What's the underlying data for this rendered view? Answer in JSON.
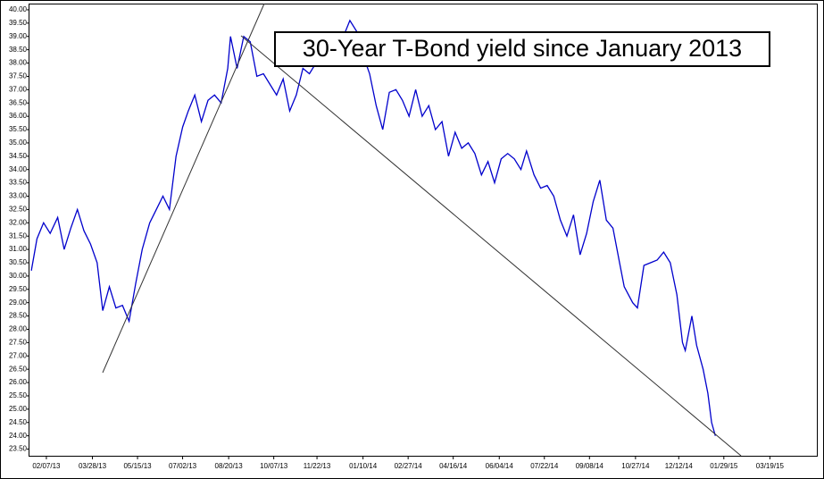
{
  "chart_data": {
    "type": "line",
    "title": "30-Year T-Bond yield since January 2013",
    "x": [
      "01/22/13",
      "01/28/13",
      "02/04/13",
      "02/11/13",
      "02/19/13",
      "02/26/13",
      "03/05/13",
      "03/12/13",
      "03/19/13",
      "03/26/13",
      "04/02/13",
      "04/08/13",
      "04/15/13",
      "04/22/13",
      "04/29/13",
      "05/06/13",
      "05/13/13",
      "05/20/13",
      "05/28/13",
      "06/04/13",
      "06/11/13",
      "06/18/13",
      "06/25/13",
      "07/02/13",
      "07/08/13",
      "07/15/13",
      "07/22/13",
      "07/29/13",
      "08/05/13",
      "08/12/13",
      "08/19/13",
      "08/22/13",
      "08/29/13",
      "09/05/13",
      "09/12/13",
      "09/19/13",
      "09/26/13",
      "10/03/13",
      "10/10/13",
      "10/17/13",
      "10/24/13",
      "10/31/13",
      "11/07/13",
      "11/14/13",
      "11/21/13",
      "11/28/13",
      "12/05/13",
      "12/12/13",
      "12/19/13",
      "12/27/13",
      "01/03/14",
      "01/10/14",
      "01/17/14",
      "01/24/14",
      "01/31/14",
      "02/07/14",
      "02/14/14",
      "02/21/14",
      "02/28/14",
      "03/07/14",
      "03/14/14",
      "03/21/14",
      "03/28/14",
      "04/04/14",
      "04/11/14",
      "04/18/14",
      "04/25/14",
      "05/02/14",
      "05/09/14",
      "05/16/14",
      "05/23/14",
      "05/30/14",
      "06/06/14",
      "06/13/14",
      "06/20/14",
      "06/27/14",
      "07/03/14",
      "07/11/14",
      "07/18/14",
      "07/25/14",
      "08/01/14",
      "08/08/14",
      "08/15/14",
      "08/22/14",
      "08/29/14",
      "09/05/14",
      "09/12/14",
      "09/19/14",
      "09/26/14",
      "10/03/14",
      "10/10/14",
      "10/15/14",
      "10/24/14",
      "10/29/14",
      "11/05/14",
      "11/12/14",
      "11/19/14",
      "11/26/14",
      "12/03/14",
      "12/10/14",
      "12/16/14",
      "12/19/14",
      "12/26/14",
      "12/31/14",
      "01/07/15",
      "01/12/15",
      "01/16/15",
      "01/20/15"
    ],
    "series": [
      {
        "color": "#0000cc",
        "values": [
          30.2,
          31.4,
          32.0,
          31.6,
          32.2,
          31.0,
          31.8,
          32.5,
          31.7,
          31.2,
          30.5,
          28.7,
          29.6,
          28.8,
          28.9,
          28.3,
          29.7,
          31.0,
          32.0,
          32.5,
          33.0,
          32.5,
          34.5,
          35.6,
          36.2,
          36.8,
          35.8,
          36.6,
          36.8,
          36.5,
          37.8,
          39.0,
          37.8,
          39.0,
          38.8,
          37.5,
          37.6,
          37.2,
          36.8,
          37.4,
          36.2,
          36.8,
          37.8,
          37.6,
          38.0,
          38.6,
          38.9,
          38.8,
          38.9,
          39.6,
          39.2,
          38.3,
          37.6,
          36.4,
          35.5,
          36.9,
          37.0,
          36.6,
          36.0,
          37.0,
          36.0,
          36.4,
          35.5,
          35.8,
          34.5,
          35.4,
          34.8,
          35.0,
          34.6,
          33.8,
          34.3,
          33.5,
          34.4,
          34.6,
          34.4,
          34.0,
          34.7,
          33.8,
          33.3,
          33.4,
          33.0,
          32.1,
          31.5,
          32.3,
          30.8,
          31.6,
          32.8,
          33.6,
          32.1,
          31.8,
          30.5,
          29.6,
          29.0,
          28.8,
          30.4,
          30.5,
          30.6,
          30.9,
          30.5,
          29.3,
          27.5,
          27.2,
          28.5,
          27.4,
          26.5,
          25.6,
          24.5,
          24.0
        ]
      }
    ],
    "xlim": [
      "01/20/13",
      "05/08/15"
    ],
    "xticks": [
      "02/07/13",
      "03/28/13",
      "05/15/13",
      "07/02/13",
      "08/20/13",
      "10/07/13",
      "11/22/13",
      "01/10/14",
      "02/27/14",
      "04/16/14",
      "06/04/14",
      "07/22/14",
      "09/08/14",
      "10/27/14",
      "12/12/14",
      "01/29/15",
      "03/19/15"
    ],
    "ylim": [
      23.25,
      40.2
    ],
    "yticks": [
      {
        "value": 23.5,
        "label": "23.50"
      },
      {
        "value": 24,
        "label": "24.00"
      },
      {
        "value": 24.5,
        "label": "24.50"
      },
      {
        "value": 25,
        "label": "25.00"
      },
      {
        "value": 25.5,
        "label": "25.50"
      },
      {
        "value": 26,
        "label": "26.00"
      },
      {
        "value": 26.5,
        "label": "26.50"
      },
      {
        "value": 27,
        "label": "27.00"
      },
      {
        "value": 27.5,
        "label": "27.50"
      },
      {
        "value": 28,
        "label": "28.00"
      },
      {
        "value": 28.5,
        "label": "28.50"
      },
      {
        "value": 29,
        "label": "29.00"
      },
      {
        "value": 29.5,
        "label": "29.50"
      },
      {
        "value": 30,
        "label": "30.00"
      },
      {
        "value": 30.5,
        "label": "30.50"
      },
      {
        "value": 31,
        "label": "31.00"
      },
      {
        "value": 31.5,
        "label": "31.50"
      },
      {
        "value": 32,
        "label": "32.00"
      },
      {
        "value": 32.5,
        "label": "32.50"
      },
      {
        "value": 33,
        "label": "33.00"
      },
      {
        "value": 33.5,
        "label": "33.50"
      },
      {
        "value": 34,
        "label": "34.00"
      },
      {
        "value": 34.5,
        "label": "34.50"
      },
      {
        "value": 35,
        "label": "35.00"
      },
      {
        "value": 35.5,
        "label": "35.50"
      },
      {
        "value": 36,
        "label": "36.00"
      },
      {
        "value": 36.5,
        "label": "36.50"
      },
      {
        "value": 37,
        "label": "37.00"
      },
      {
        "value": 37.5,
        "label": "37.50"
      },
      {
        "value": 38,
        "label": "38.00"
      },
      {
        "value": 38.5,
        "label": "38.50"
      },
      {
        "value": 39,
        "label": "39.00"
      },
      {
        "value": 39.5,
        "label": "39.50"
      },
      {
        "value": 40,
        "label": "40.00"
      }
    ]
  }
}
